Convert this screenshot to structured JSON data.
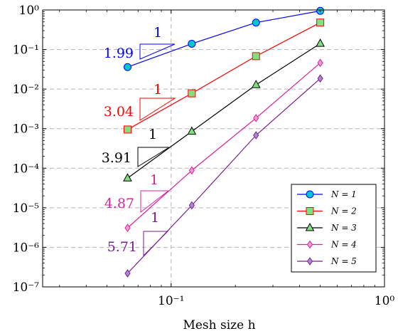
{
  "chart_data": {
    "type": "line",
    "x_scale": "log",
    "y_scale": "log",
    "xlim": [
      0.025,
      1
    ],
    "ylim": [
      1e-07,
      1
    ],
    "grid": true,
    "legend_position": "bottom-right",
    "xlabel": "Mesh size h",
    "ylabel": "",
    "x_tick_labels": [
      "10⁻¹",
      "10⁰"
    ],
    "y_tick_labels": [
      "10⁰",
      "10⁻¹",
      "10⁻²",
      "10⁻³",
      "10⁻⁴",
      "10⁻⁵",
      "10⁻⁶",
      "10⁻⁷"
    ],
    "x": [
      0.0625,
      0.125,
      0.25,
      0.5
    ],
    "series": [
      {
        "name": "N = 1",
        "values": [
          0.036,
          0.14,
          0.48,
          0.95
        ],
        "color": "#0000ff",
        "fill": "#00c8c8",
        "marker": "circle"
      },
      {
        "name": "N = 2",
        "values": [
          0.00095,
          0.0078,
          0.068,
          0.48
        ],
        "color": "#ff0000",
        "fill": "#7fe07f",
        "marker": "square"
      },
      {
        "name": "N = 3",
        "values": [
          5.6e-05,
          0.00085,
          0.0128,
          0.142
        ],
        "color": "#000000",
        "fill": "#7fe07f",
        "marker": "triangle"
      },
      {
        "name": "N = 4",
        "values": [
          3.1e-06,
          8.8e-05,
          0.00185,
          0.046
        ],
        "color": "#d6249f",
        "fill": "#f09ad0",
        "marker": "diamond"
      },
      {
        "name": "N = 5",
        "values": [
          2.2e-07,
          1.15e-05,
          0.00068,
          0.0185
        ],
        "color": "#7a1f8e",
        "fill": "#a98ad0",
        "marker": "diamond"
      }
    ],
    "slope_triangles": [
      {
        "slope": "1.99",
        "run": "1",
        "color": "#0000ff"
      },
      {
        "slope": "3.04",
        "run": "1",
        "color": "#ff0000"
      },
      {
        "slope": "3.91",
        "run": "1",
        "color": "#000000"
      },
      {
        "slope": "4.87",
        "run": "1",
        "color": "#d6249f"
      },
      {
        "slope": "5.71",
        "run": "1",
        "color": "#7a1f8e"
      }
    ]
  }
}
